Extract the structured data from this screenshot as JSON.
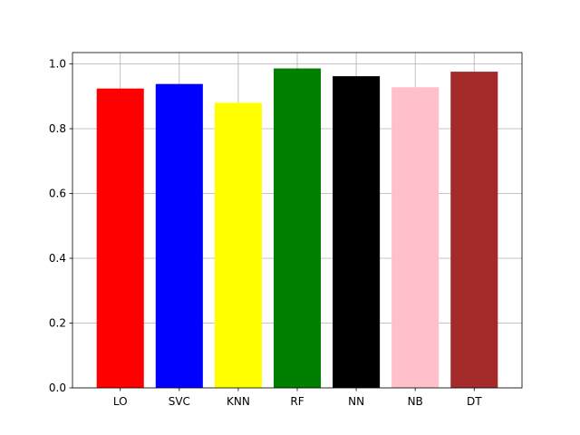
{
  "chart_data": {
    "type": "bar",
    "title": "",
    "xlabel": "",
    "ylabel": "",
    "categories": [
      "LO",
      "SVC",
      "KNN",
      "RF",
      "NN",
      "NB",
      "DT"
    ],
    "values": [
      0.924,
      0.938,
      0.88,
      0.986,
      0.962,
      0.928,
      0.976
    ],
    "colors": [
      "#ff0000",
      "#0000ff",
      "#ffff00",
      "#008000",
      "#000000",
      "#ffc0cb",
      "#a52a2a"
    ],
    "ylim": [
      0,
      1.0
    ],
    "yticks": [
      0.0,
      0.2,
      0.4,
      0.6,
      0.8,
      1.0
    ],
    "ytick_labels": [
      "0.0",
      "0.2",
      "0.4",
      "0.6",
      "0.8",
      "1.0"
    ],
    "grid": true
  }
}
